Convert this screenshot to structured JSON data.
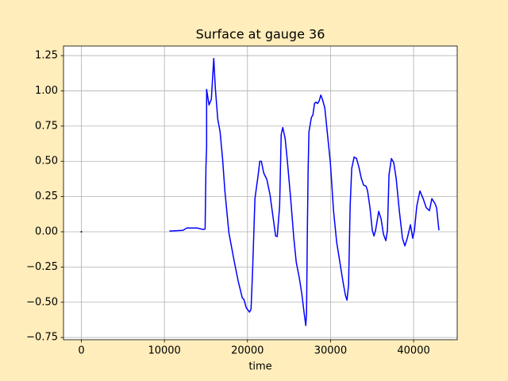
{
  "chart_data": {
    "type": "line",
    "title": "Surface at gauge 36",
    "x_label": "time",
    "xlim": [
      -2150,
      45250
    ],
    "ylim": [
      -0.766,
      1.318
    ],
    "xticks": [
      0,
      10000,
      20000,
      30000,
      40000
    ],
    "yticks": [
      {
        "value": -0.75,
        "label": "−0.75"
      },
      {
        "value": -0.5,
        "label": "−0.50"
      },
      {
        "value": -0.25,
        "label": "−0.25"
      },
      {
        "value": 0,
        "label": "0.00"
      },
      0.25,
      {
        "value": 0.5,
        "label": "0.50"
      },
      0.75,
      {
        "value": 1,
        "label": "1.00"
      },
      1.25
    ],
    "grid": true,
    "series": [
      {
        "color": "#000000",
        "x": [
          0
        ],
        "values": [
          0
        ]
      },
      {
        "color": "#0000ff",
        "x": [
          10600,
          12220,
          12700,
          13940,
          14700,
          14900,
          15000,
          15080,
          15080,
          15370,
          15650,
          15850,
          15940,
          16130,
          16420,
          16700,
          17000,
          17280,
          17760,
          18420,
          18900,
          19380,
          19570,
          19860,
          20240,
          20430,
          20620,
          20900,
          21290,
          21480,
          21670,
          21960,
          22340,
          22720,
          23100,
          23390,
          23580,
          23870,
          24060,
          24250,
          24540,
          24820,
          25200,
          25580,
          25870,
          26250,
          26540,
          26830,
          27020,
          27110,
          27210,
          27300,
          27400,
          27490,
          27690,
          27880,
          28070,
          28260,
          28450,
          28640,
          28830,
          29020,
          29310,
          29600,
          29980,
          30360,
          30740,
          31120,
          31500,
          31790,
          31980,
          32170,
          32360,
          32550,
          32840,
          33130,
          33410,
          33700,
          33990,
          34270,
          34460,
          34750,
          35030,
          35230,
          35420,
          35800,
          36090,
          36370,
          36660,
          36850,
          37040,
          37330,
          37610,
          37900,
          38280,
          38660,
          38950,
          39240,
          39620,
          39900,
          40100,
          40380,
          40760,
          41150,
          41530,
          41910,
          42200,
          42580,
          42770,
          43050
        ],
        "values": [
          0.005,
          0.01,
          0.027,
          0.027,
          0.016,
          0.02,
          0.46,
          0.6,
          1.01,
          0.9,
          0.94,
          1.14,
          1.23,
          1.02,
          0.8,
          0.71,
          0.52,
          0.29,
          -0.006,
          -0.215,
          -0.355,
          -0.47,
          -0.48,
          -0.54,
          -0.57,
          -0.55,
          -0.27,
          0.236,
          0.405,
          0.5,
          0.5,
          0.416,
          0.37,
          0.26,
          0.095,
          -0.03,
          -0.034,
          0.18,
          0.69,
          0.74,
          0.66,
          0.49,
          0.236,
          -0.046,
          -0.215,
          -0.33,
          -0.44,
          -0.58,
          -0.665,
          -0.58,
          0.01,
          0.43,
          0.71,
          0.74,
          0.81,
          0.83,
          0.91,
          0.92,
          0.91,
          0.93,
          0.97,
          0.94,
          0.88,
          0.71,
          0.49,
          0.15,
          -0.074,
          -0.215,
          -0.355,
          -0.45,
          -0.485,
          -0.38,
          0.18,
          0.45,
          0.53,
          0.52,
          0.46,
          0.38,
          0.33,
          0.325,
          0.29,
          0.17,
          0.01,
          -0.03,
          0.01,
          0.145,
          0.09,
          -0.017,
          -0.063,
          0.01,
          0.405,
          0.52,
          0.49,
          0.38,
          0.15,
          -0.046,
          -0.1,
          -0.046,
          0.05,
          -0.046,
          0.01,
          0.18,
          0.29,
          0.235,
          0.17,
          0.15,
          0.235,
          0.2,
          0.17,
          0.01
        ]
      }
    ]
  }
}
